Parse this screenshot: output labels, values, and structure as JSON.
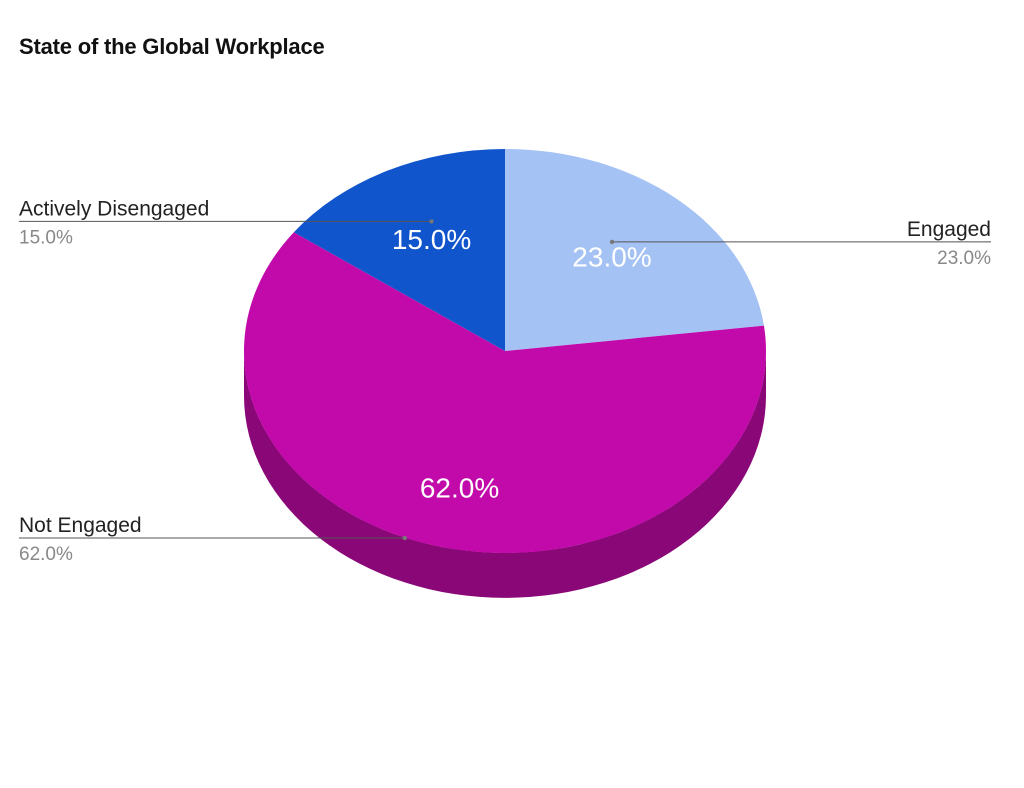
{
  "chart_data": {
    "type": "pie",
    "title": "State of the Global Workplace",
    "three_d": true,
    "legend": "none",
    "slices": [
      {
        "label": "Engaged",
        "value": 23.0,
        "display": "23.0%",
        "color": "#a4c2f4",
        "side_color": "#7f9ccb"
      },
      {
        "label": "Not Engaged",
        "value": 62.0,
        "display": "62.0%",
        "color": "#c20aaa",
        "side_color": "#8a0778"
      },
      {
        "label": "Actively Disengaged",
        "value": 15.0,
        "display": "15.0%",
        "color": "#1155cc",
        "side_color": "#0b3d91"
      }
    ]
  }
}
